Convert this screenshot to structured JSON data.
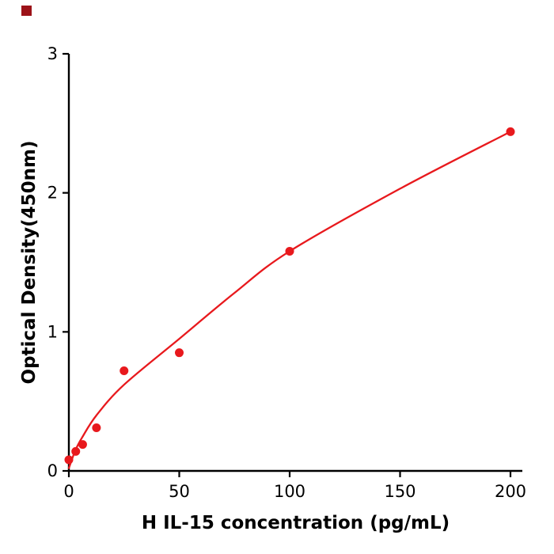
{
  "page": {
    "background": "#ffffff"
  },
  "corner_mark": {
    "color": "#9c1218"
  },
  "chart_data": {
    "type": "scatter",
    "title": "",
    "xlabel": "H IL-15 concentration (pg/mL)",
    "ylabel": "Optical Density(450nm)",
    "x": [
      0,
      3.125,
      6.25,
      12.5,
      25,
      50,
      100,
      200
    ],
    "y": [
      0.08,
      0.14,
      0.19,
      0.31,
      0.72,
      0.85,
      1.58,
      2.44
    ],
    "xticks": [
      0,
      50,
      100,
      150,
      200
    ],
    "yticks": [
      0,
      1,
      2,
      3
    ],
    "xlim": [
      0,
      205
    ],
    "ylim": [
      0,
      3
    ],
    "grid": false,
    "legend": "none",
    "marker_color": "#e8191d",
    "line_color": "#e8191d",
    "axis_color": "#000000",
    "trend": {
      "x": [
        0,
        3,
        6,
        12.5,
        25,
        50,
        75,
        100,
        150,
        200
      ],
      "y": [
        0.02,
        0.15,
        0.24,
        0.4,
        0.62,
        0.95,
        1.28,
        1.58,
        2.03,
        2.44
      ]
    }
  }
}
